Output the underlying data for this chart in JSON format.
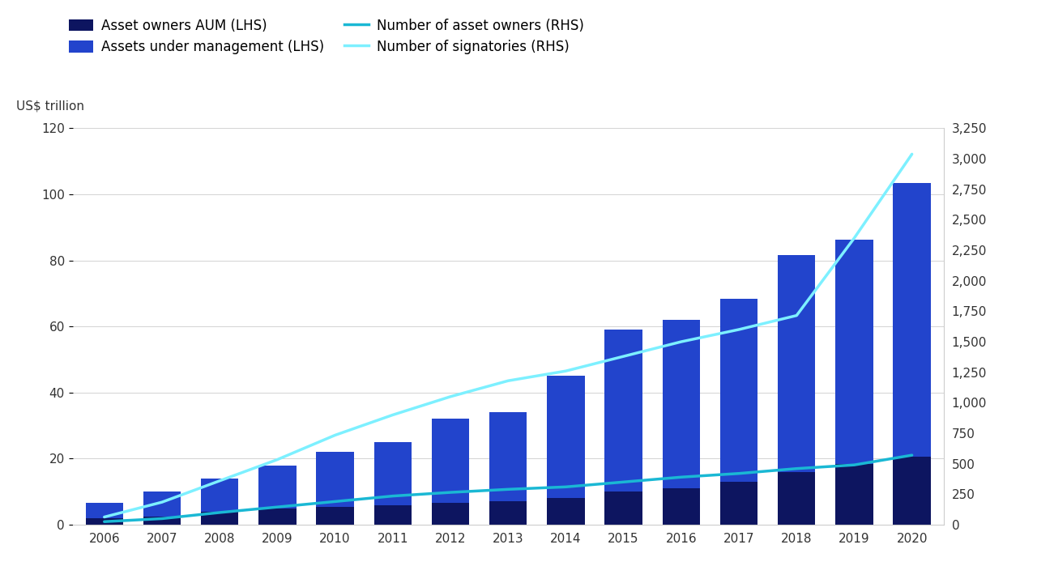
{
  "years": [
    2006,
    2007,
    2008,
    2009,
    2010,
    2011,
    2012,
    2013,
    2014,
    2015,
    2016,
    2017,
    2018,
    2019,
    2020
  ],
  "aum_total": [
    6.5,
    10.0,
    14.0,
    18.0,
    22.0,
    25.0,
    32.0,
    34.0,
    45.0,
    59.0,
    62.0,
    68.5,
    81.7,
    86.3,
    103.4
  ],
  "aum_asset_owners": [
    2.0,
    2.5,
    4.0,
    5.0,
    5.5,
    6.0,
    6.5,
    7.0,
    8.0,
    10.0,
    11.0,
    13.0,
    16.0,
    18.5,
    20.5
  ],
  "num_signatories": [
    63,
    185,
    360,
    534,
    734,
    900,
    1050,
    1180,
    1260,
    1380,
    1500,
    1600,
    1715,
    2350,
    3038
  ],
  "num_asset_owners": [
    25,
    50,
    100,
    145,
    190,
    235,
    265,
    290,
    310,
    350,
    390,
    420,
    460,
    490,
    570
  ],
  "bar_color_total": "#2244cc",
  "bar_color_owners": "#0d1560",
  "line_color_signatories": "#7df0ff",
  "line_color_asset_owners": "#1ab8d4",
  "ylabel_left": "US$ trillion",
  "ylim_left": [
    0,
    120
  ],
  "yticks_left": [
    0,
    20,
    40,
    60,
    80,
    100,
    120
  ],
  "ylim_right": [
    0,
    3250
  ],
  "yticks_right": [
    0,
    250,
    500,
    750,
    1000,
    1250,
    1500,
    1750,
    2000,
    2250,
    2500,
    2750,
    3000,
    3250
  ],
  "background_color": "#ffffff",
  "legend_items": [
    {
      "label": "Asset owners AUM (LHS)",
      "color": "#0d1560",
      "type": "bar"
    },
    {
      "label": "Assets under management (LHS)",
      "color": "#2244cc",
      "type": "bar"
    },
    {
      "label": "Number of asset owners (RHS)",
      "color": "#1ab8d4",
      "type": "line"
    },
    {
      "label": "Number of signatories (RHS)",
      "color": "#7df0ff",
      "type": "line"
    }
  ]
}
